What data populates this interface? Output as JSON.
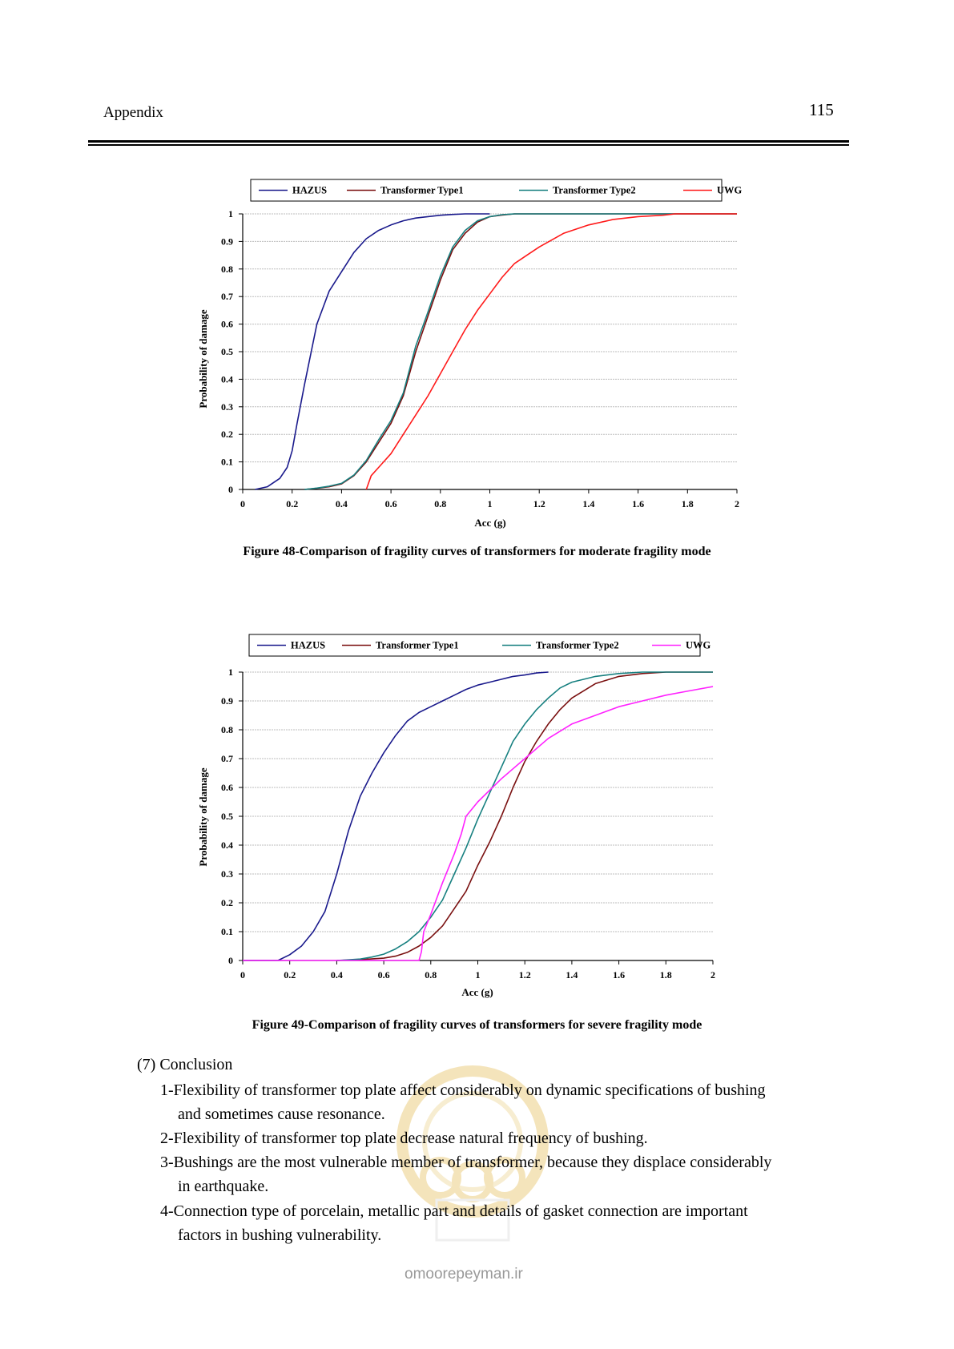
{
  "header": {
    "left": "Appendix",
    "page_number": "115"
  },
  "colors": {
    "HAZUS": "#1a1a8c",
    "Type1": "#7a1010",
    "Type2": "#178080",
    "UWG48": "#ff1a1a",
    "UWG49": "#ff22ff"
  },
  "chart_data": [
    {
      "id": "fig48",
      "type": "line",
      "xlabel": "Acc (g)",
      "ylabel": "Probability of damage",
      "xlim": [
        0,
        2
      ],
      "ylim": [
        0,
        1
      ],
      "xticks": [
        "0",
        "0.2",
        "0.4",
        "0.6",
        "0.8",
        "1",
        "1.2",
        "1.4",
        "1.6",
        "1.8",
        "2"
      ],
      "yticks": [
        "0",
        "0.1",
        "0.2",
        "0.3",
        "0.4",
        "0.5",
        "0.6",
        "0.7",
        "0.8",
        "0.9",
        "1"
      ],
      "grid": true,
      "legend_position": "top",
      "series": [
        {
          "name": "HAZUS",
          "color": "#1a1a8c",
          "x": [
            0.05,
            0.1,
            0.15,
            0.18,
            0.2,
            0.22,
            0.25,
            0.3,
            0.35,
            0.4,
            0.45,
            0.5,
            0.55,
            0.6,
            0.65,
            0.7,
            0.75,
            0.8,
            0.85,
            0.9,
            1.0
          ],
          "y": [
            0,
            0.01,
            0.04,
            0.08,
            0.14,
            0.24,
            0.38,
            0.6,
            0.72,
            0.79,
            0.86,
            0.91,
            0.94,
            0.96,
            0.975,
            0.985,
            0.99,
            0.995,
            0.998,
            1,
            1
          ]
        },
        {
          "name": "Transformer Type1",
          "color": "#7a1010",
          "x": [
            0.25,
            0.3,
            0.35,
            0.4,
            0.45,
            0.5,
            0.55,
            0.6,
            0.65,
            0.7,
            0.75,
            0.8,
            0.85,
            0.9,
            0.95,
            1.0,
            1.05,
            1.1,
            2.0
          ],
          "y": [
            0,
            0.004,
            0.01,
            0.02,
            0.05,
            0.1,
            0.17,
            0.24,
            0.34,
            0.5,
            0.63,
            0.76,
            0.87,
            0.93,
            0.97,
            0.99,
            0.996,
            1,
            1
          ]
        },
        {
          "name": "Transformer Type2",
          "color": "#178080",
          "x": [
            0.25,
            0.3,
            0.35,
            0.4,
            0.45,
            0.5,
            0.55,
            0.6,
            0.65,
            0.7,
            0.75,
            0.8,
            0.85,
            0.9,
            0.95,
            1.0,
            1.05,
            1.1,
            2.0
          ],
          "y": [
            0,
            0.005,
            0.012,
            0.022,
            0.052,
            0.105,
            0.18,
            0.25,
            0.35,
            0.52,
            0.645,
            0.775,
            0.88,
            0.94,
            0.975,
            0.99,
            0.997,
            1,
            1
          ]
        },
        {
          "name": "UWG",
          "color": "#ff1a1a",
          "x": [
            0.5,
            0.52,
            0.55,
            0.6,
            0.65,
            0.7,
            0.75,
            0.8,
            0.85,
            0.9,
            0.95,
            1.0,
            1.05,
            1.1,
            1.15,
            1.2,
            1.3,
            1.4,
            1.5,
            1.6,
            1.7,
            1.75,
            2.0
          ],
          "y": [
            0,
            0.05,
            0.08,
            0.13,
            0.2,
            0.27,
            0.34,
            0.42,
            0.5,
            0.58,
            0.65,
            0.71,
            0.77,
            0.82,
            0.85,
            0.88,
            0.93,
            0.96,
            0.98,
            0.99,
            0.995,
            1,
            1
          ]
        }
      ]
    },
    {
      "id": "fig49",
      "type": "line",
      "xlabel": "Acc (g)",
      "ylabel": "Probability of damage",
      "xlim": [
        0,
        2
      ],
      "ylim": [
        0,
        1
      ],
      "xticks": [
        "0",
        "0.2",
        "0.4",
        "0.6",
        "0.8",
        "1",
        "1.2",
        "1.4",
        "1.6",
        "1.8",
        "2"
      ],
      "yticks": [
        "0",
        "0.1",
        "0.2",
        "0.3",
        "0.4",
        "0.5",
        "0.6",
        "0.7",
        "0.8",
        "0.9",
        "1"
      ],
      "grid": true,
      "legend_position": "top",
      "series": [
        {
          "name": "HAZUS",
          "color": "#1a1a8c",
          "x": [
            0,
            0.15,
            0.2,
            0.25,
            0.3,
            0.35,
            0.4,
            0.45,
            0.5,
            0.55,
            0.6,
            0.65,
            0.7,
            0.75,
            0.8,
            0.85,
            0.9,
            0.95,
            1.0,
            1.05,
            1.1,
            1.15,
            1.2,
            1.25,
            1.3
          ],
          "y": [
            0,
            0,
            0.02,
            0.05,
            0.1,
            0.17,
            0.3,
            0.45,
            0.57,
            0.65,
            0.72,
            0.78,
            0.83,
            0.86,
            0.88,
            0.9,
            0.92,
            0.94,
            0.955,
            0.965,
            0.975,
            0.985,
            0.99,
            0.997,
            1
          ]
        },
        {
          "name": "Transformer Type1",
          "color": "#7a1010",
          "x": [
            0.4,
            0.5,
            0.6,
            0.65,
            0.7,
            0.75,
            0.8,
            0.85,
            0.9,
            0.95,
            1.0,
            1.05,
            1.1,
            1.15,
            1.2,
            1.25,
            1.3,
            1.35,
            1.4,
            1.5,
            1.6,
            1.7,
            1.8,
            2.0
          ],
          "y": [
            0,
            0.003,
            0.008,
            0.015,
            0.028,
            0.05,
            0.08,
            0.12,
            0.18,
            0.24,
            0.33,
            0.41,
            0.5,
            0.6,
            0.69,
            0.76,
            0.82,
            0.87,
            0.91,
            0.96,
            0.985,
            0.995,
            1,
            1
          ]
        },
        {
          "name": "Transformer Type2",
          "color": "#178080",
          "x": [
            0.4,
            0.5,
            0.55,
            0.6,
            0.65,
            0.7,
            0.75,
            0.8,
            0.85,
            0.9,
            0.95,
            1.0,
            1.05,
            1.1,
            1.15,
            1.2,
            1.25,
            1.3,
            1.35,
            1.4,
            1.5,
            1.6,
            1.7,
            2.0
          ],
          "y": [
            0,
            0.005,
            0.012,
            0.022,
            0.04,
            0.065,
            0.1,
            0.15,
            0.21,
            0.3,
            0.39,
            0.49,
            0.58,
            0.67,
            0.76,
            0.82,
            0.87,
            0.91,
            0.945,
            0.965,
            0.985,
            0.995,
            1,
            1
          ]
        },
        {
          "name": "UWG",
          "color": "#ff22ff",
          "x": [
            0,
            0.75,
            0.76,
            0.77,
            0.8,
            0.85,
            0.9,
            0.93,
            0.95,
            1.0,
            1.1,
            1.2,
            1.3,
            1.4,
            1.5,
            1.6,
            1.7,
            1.8,
            1.9,
            2.0
          ],
          "y": [
            0,
            0,
            0.03,
            0.1,
            0.16,
            0.27,
            0.37,
            0.44,
            0.5,
            0.55,
            0.63,
            0.7,
            0.77,
            0.82,
            0.85,
            0.88,
            0.9,
            0.92,
            0.935,
            0.95
          ]
        }
      ]
    }
  ],
  "captions": {
    "fig48": "Figure 48-Comparison of fragility curves of transformers for moderate fragility mode",
    "fig49": "Figure 49-Comparison of fragility curves of transformers for severe fragility mode"
  },
  "conclusion": {
    "title": "(7) Conclusion",
    "items": [
      {
        "line1": "1-Flexibility of transformer top plate affect considerably on dynamic specifications of bushing",
        "line2": "and sometimes cause resonance."
      },
      {
        "line1": "2-Flexibility of transformer top plate decrease natural frequency of bushing.",
        "line2": ""
      },
      {
        "line1": "3-Bushings are the most vulnerable member of transformer, because they displace considerably",
        "line2": "in earthquake."
      },
      {
        "line1": "4-Connection type of porcelain, metallic part and details of gasket connection are important",
        "line2": "factors in bushing vulnerability."
      }
    ]
  },
  "watermark": {
    "text": "omoorepeyman.ir"
  }
}
